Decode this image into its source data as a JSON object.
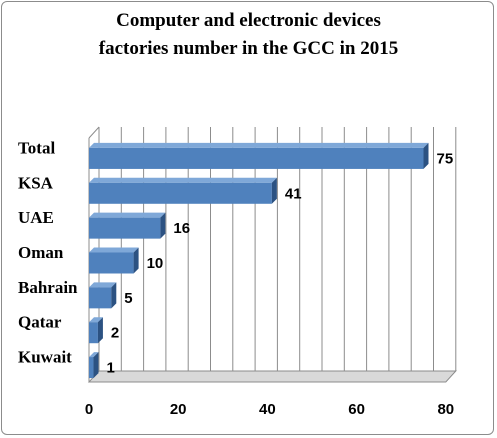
{
  "chart_data": {
    "type": "bar",
    "orientation": "horizontal",
    "three_d": true,
    "title_lines": [
      "Computer and electronic devices",
      "factories number in the GCC in 2015"
    ],
    "categories": [
      "Total",
      "KSA",
      "UAE",
      "Oman",
      "Bahrain",
      "Qatar",
      "Kuwait"
    ],
    "values": [
      75,
      41,
      16,
      10,
      5,
      2,
      1
    ],
    "data_labels": [
      "75",
      "41",
      "16",
      "10",
      "5",
      "2",
      "1"
    ],
    "xlim": [
      0,
      80
    ],
    "xticks": [
      "0",
      "20",
      "40",
      "60",
      "80"
    ],
    "grid": true,
    "legend": "none",
    "colors": {
      "bar_front": "#4f81bd",
      "bar_side": "#2c5282",
      "bar_top": "#7fa8d8",
      "grid": "#8c8c8c",
      "floor": "#d9d9d9"
    }
  }
}
